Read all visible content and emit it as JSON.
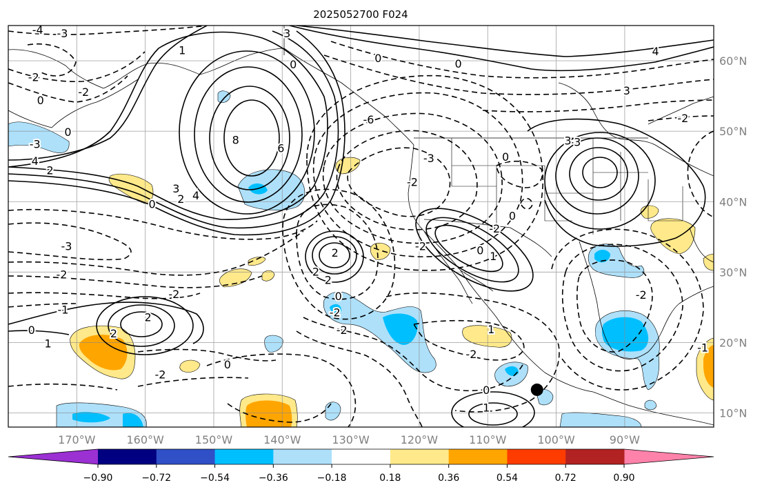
{
  "title": "2025052700 F024",
  "map": {
    "lon_range": [
      -180,
      -77
    ],
    "lat_range": [
      8,
      65
    ],
    "lon_ticks": [
      {
        "value": -170,
        "label": "170°W"
      },
      {
        "value": -160,
        "label": "160°W"
      },
      {
        "value": -150,
        "label": "150°W"
      },
      {
        "value": -140,
        "label": "140°W"
      },
      {
        "value": -130,
        "label": "130°W"
      },
      {
        "value": -120,
        "label": "120°W"
      },
      {
        "value": -110,
        "label": "110°W"
      },
      {
        "value": -100,
        "label": "100°W"
      },
      {
        "value": -90,
        "label": "90°W"
      }
    ],
    "lat_ticks": [
      {
        "value": 60,
        "label": "60°N"
      },
      {
        "value": 50,
        "label": "50°N"
      },
      {
        "value": 40,
        "label": "40°N"
      },
      {
        "value": 30,
        "label": "30°N"
      },
      {
        "value": 20,
        "label": "20°N"
      },
      {
        "value": 10,
        "label": "10°N"
      }
    ],
    "grid": true,
    "tick_label_color": "#808080",
    "marker": {
      "lon": -102.8,
      "lat": 13.3,
      "color": "#000000"
    },
    "contour_labels": [
      {
        "text": "3",
        "lon": -139.3,
        "lat": 63.9
      },
      {
        "text": "0",
        "lon": -138.4,
        "lat": 59.5
      },
      {
        "text": "0",
        "lon": -126.0,
        "lat": 60.4
      },
      {
        "text": "0",
        "lon": -114.3,
        "lat": 59.6
      },
      {
        "text": "-4",
        "lon": -175.7,
        "lat": 64.4
      },
      {
        "text": "-3",
        "lon": -172.1,
        "lat": 63.9
      },
      {
        "text": "-2",
        "lon": -176.3,
        "lat": 57.7
      },
      {
        "text": "0",
        "lon": -175.3,
        "lat": 54.4
      },
      {
        "text": "-2",
        "lon": -169.0,
        "lat": 55.6
      },
      {
        "text": "1",
        "lon": -154.6,
        "lat": 61.5
      },
      {
        "text": "0",
        "lon": -171.3,
        "lat": 49.9
      },
      {
        "text": "-3",
        "lon": -176.1,
        "lat": 48.2
      },
      {
        "text": "4",
        "lon": -176.1,
        "lat": 45.8
      },
      {
        "text": "2",
        "lon": -173.9,
        "lat": 44.5
      },
      {
        "text": "8",
        "lon": -146.8,
        "lat": 48.8
      },
      {
        "text": "6",
        "lon": -140.2,
        "lat": 47.6
      },
      {
        "text": "4",
        "lon": -152.6,
        "lat": 40.9
      },
      {
        "text": "3",
        "lon": -155.5,
        "lat": 41.9
      },
      {
        "text": "2",
        "lon": -154.8,
        "lat": 40.4
      },
      {
        "text": "0",
        "lon": -159.0,
        "lat": 39.7
      },
      {
        "text": "-6",
        "lon": -127.4,
        "lat": 51.7
      },
      {
        "text": "-3",
        "lon": -118.6,
        "lat": 46.2
      },
      {
        "text": "-2",
        "lon": -121.0,
        "lat": 42.8
      },
      {
        "text": "0",
        "lon": -107.4,
        "lat": 46.4
      },
      {
        "text": "0",
        "lon": -106.4,
        "lat": 38.0
      },
      {
        "text": "-2",
        "lon": -109.0,
        "lat": 36.2
      },
      {
        "text": "0",
        "lon": -111.1,
        "lat": 33.1
      },
      {
        "text": "1",
        "lon": -109.2,
        "lat": 32.3
      },
      {
        "text": "-2",
        "lon": -119.8,
        "lat": 33.7
      },
      {
        "text": "-3",
        "lon": -171.5,
        "lat": 33.7
      },
      {
        "text": "-2",
        "lon": -172.2,
        "lat": 29.7
      },
      {
        "text": "-2",
        "lon": -155.8,
        "lat": 26.9
      },
      {
        "text": "-1",
        "lon": -172.0,
        "lat": 24.7
      },
      {
        "text": "2",
        "lon": -132.3,
        "lat": 32.8
      },
      {
        "text": "2",
        "lon": -135.1,
        "lat": 30.1
      },
      {
        "text": "2",
        "lon": -133.3,
        "lat": 28.9
      },
      {
        "text": "0",
        "lon": -131.8,
        "lat": 26.6
      },
      {
        "text": "-2",
        "lon": -132.3,
        "lat": 24.3
      },
      {
        "text": "-2",
        "lon": -131.3,
        "lat": 21.8
      },
      {
        "text": "0",
        "lon": -176.6,
        "lat": 21.8
      },
      {
        "text": "1",
        "lon": -174.2,
        "lat": 19.9
      },
      {
        "text": "2",
        "lon": -159.6,
        "lat": 23.6
      },
      {
        "text": "2",
        "lon": -164.6,
        "lat": 21.3
      },
      {
        "text": "0",
        "lon": -148.0,
        "lat": 16.9
      },
      {
        "text": "-2",
        "lon": -157.8,
        "lat": 15.5
      },
      {
        "text": "1",
        "lon": -109.5,
        "lat": 21.9
      },
      {
        "text": "-2",
        "lon": -112.4,
        "lat": 18.4
      },
      {
        "text": "0",
        "lon": -110.2,
        "lat": 13.3
      },
      {
        "text": "1",
        "lon": -110.2,
        "lat": 10.8
      },
      {
        "text": "-3",
        "lon": -97.2,
        "lat": 48.5
      },
      {
        "text": "3",
        "lon": -98.3,
        "lat": 48.7
      },
      {
        "text": "3",
        "lon": -89.7,
        "lat": 55.8
      },
      {
        "text": "4",
        "lon": -85.5,
        "lat": 61.4
      },
      {
        "text": "-2",
        "lon": -81.5,
        "lat": 51.9
      },
      {
        "text": "-2",
        "lon": -87.6,
        "lat": 26.8
      },
      {
        "text": "-1",
        "lon": -78.6,
        "lat": 19.3
      }
    ]
  },
  "colorbar": {
    "levels": [
      -0.9,
      -0.72,
      -0.54,
      -0.36,
      -0.18,
      0.18,
      0.36,
      0.54,
      0.72,
      0.9
    ],
    "tick_labels": [
      "−0.90",
      "−0.72",
      "−0.54",
      "−0.36",
      "−0.18",
      "0.18",
      "0.36",
      "0.54",
      "0.72",
      "0.90"
    ],
    "colors": [
      "#9b30d3",
      "#000080",
      "#3050c8",
      "#00bfff",
      "#aee0fa",
      "#ffffff",
      "#ffe98a",
      "#ffa500",
      "#ff3c00",
      "#b22222",
      "#ff82aa"
    ]
  }
}
